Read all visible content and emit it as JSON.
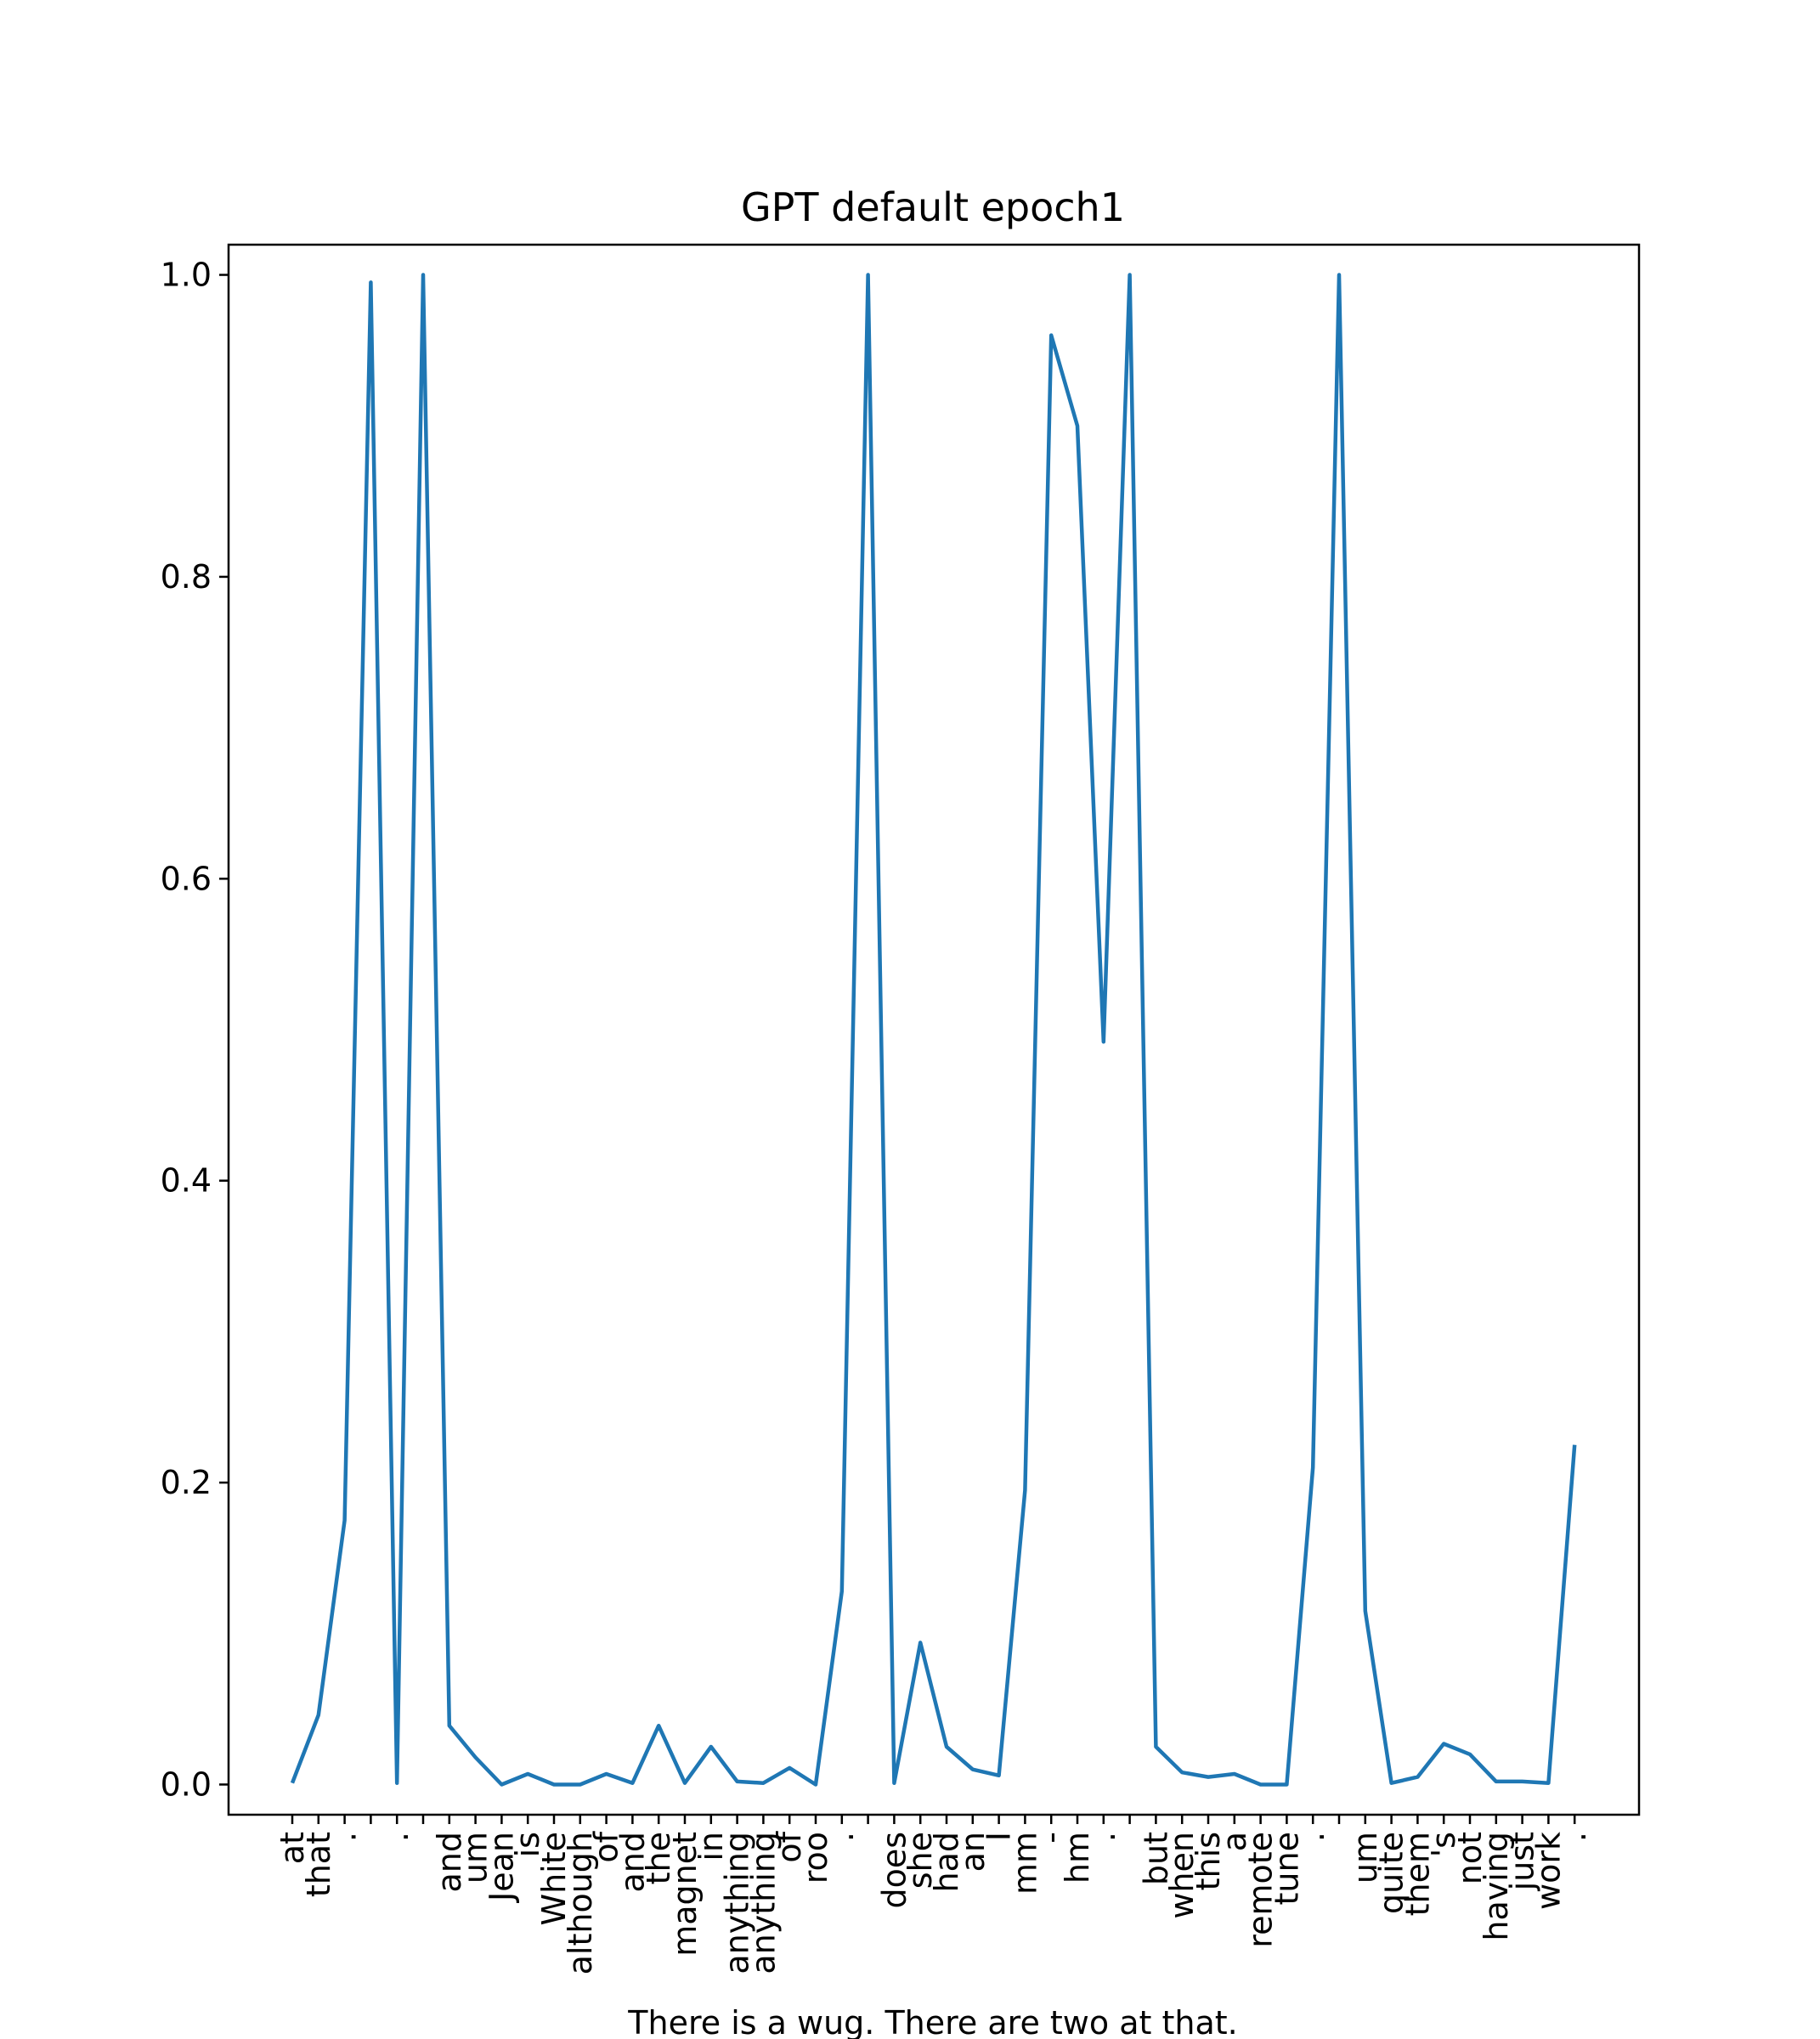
{
  "chart_data": {
    "type": "line",
    "title": "GPT default epoch1",
    "xlabel": "There is a wug. There are two  at that.",
    "ylabel": "",
    "ylim": [
      -0.02,
      1.02
    ],
    "yticks": [
      0.0,
      0.2,
      0.4,
      0.6,
      0.8,
      1.0
    ],
    "ytick_labels": [
      "0.0",
      "0.2",
      "0.4",
      "0.6",
      "0.8",
      "1.0"
    ],
    "grid": false,
    "line_color": "#1f77b4",
    "categories": [
      "at",
      "that",
      ".",
      "",
      ".",
      "",
      "and",
      "um",
      "Jean",
      "is",
      "White",
      "although",
      "of",
      "and",
      "the",
      "magnet",
      "in",
      "anything",
      "anything",
      "of",
      "roo",
      ".",
      "",
      "does",
      "she",
      "had",
      "an",
      "I",
      "mm",
      "-",
      "hm",
      ".",
      "",
      "but",
      "when",
      "this",
      "a",
      "remote",
      "tune",
      ".",
      "",
      "um",
      "quite",
      "them",
      "'s",
      "not",
      "having",
      "just",
      "work",
      "."
    ],
    "values": [
      0.001,
      0.046,
      0.175,
      0.995,
      0.001,
      1.0,
      0.039,
      0.018,
      0.0,
      0.007,
      0.0,
      0.0,
      0.007,
      0.001,
      0.039,
      0.001,
      0.025,
      0.002,
      0.001,
      0.011,
      0.0,
      0.128,
      1.0,
      0.001,
      0.094,
      0.025,
      0.01,
      0.006,
      0.195,
      0.96,
      0.9,
      0.492,
      1.0,
      0.025,
      0.008,
      0.005,
      0.007,
      0.0,
      0.0,
      0.21,
      1.0,
      0.115,
      0.001,
      0.005,
      0.027,
      0.02,
      0.002,
      0.002,
      0.001,
      0.225
    ]
  }
}
